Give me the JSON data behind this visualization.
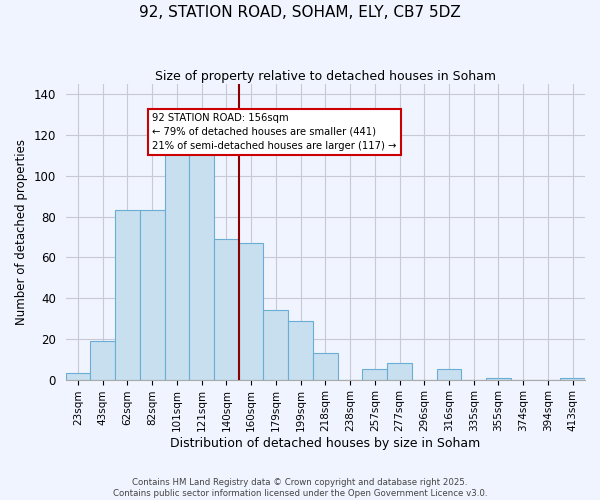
{
  "title": "92, STATION ROAD, SOHAM, ELY, CB7 5DZ",
  "subtitle": "Size of property relative to detached houses in Soham",
  "xlabel": "Distribution of detached houses by size in Soham",
  "ylabel": "Number of detached properties",
  "bar_labels": [
    "23sqm",
    "43sqm",
    "62sqm",
    "82sqm",
    "101sqm",
    "121sqm",
    "140sqm",
    "160sqm",
    "179sqm",
    "199sqm",
    "218sqm",
    "238sqm",
    "257sqm",
    "277sqm",
    "296sqm",
    "316sqm",
    "335sqm",
    "355sqm",
    "374sqm",
    "394sqm",
    "413sqm"
  ],
  "bar_values": [
    3,
    19,
    83,
    83,
    111,
    115,
    69,
    67,
    34,
    29,
    13,
    0,
    5,
    8,
    0,
    5,
    0,
    1,
    0,
    0,
    1
  ],
  "bar_color": "#c8dff0",
  "bar_edge_color": "#6aadd5",
  "ylim": [
    0,
    145
  ],
  "yticks": [
    0,
    20,
    40,
    60,
    80,
    100,
    120,
    140
  ],
  "annotation_title": "92 STATION ROAD: 156sqm",
  "annotation_line1": "← 79% of detached houses are smaller (441)",
  "annotation_line2": "21% of semi-detached houses are larger (117) →",
  "annotation_box_color": "#ffffff",
  "annotation_box_edge_color": "#cc0000",
  "vline_color": "#8b0000",
  "vline_bar_index": 7,
  "footer1": "Contains HM Land Registry data © Crown copyright and database right 2025.",
  "footer2": "Contains public sector information licensed under the Open Government Licence v3.0.",
  "background_color": "#f0f4ff",
  "grid_color": "#c8c8d8"
}
